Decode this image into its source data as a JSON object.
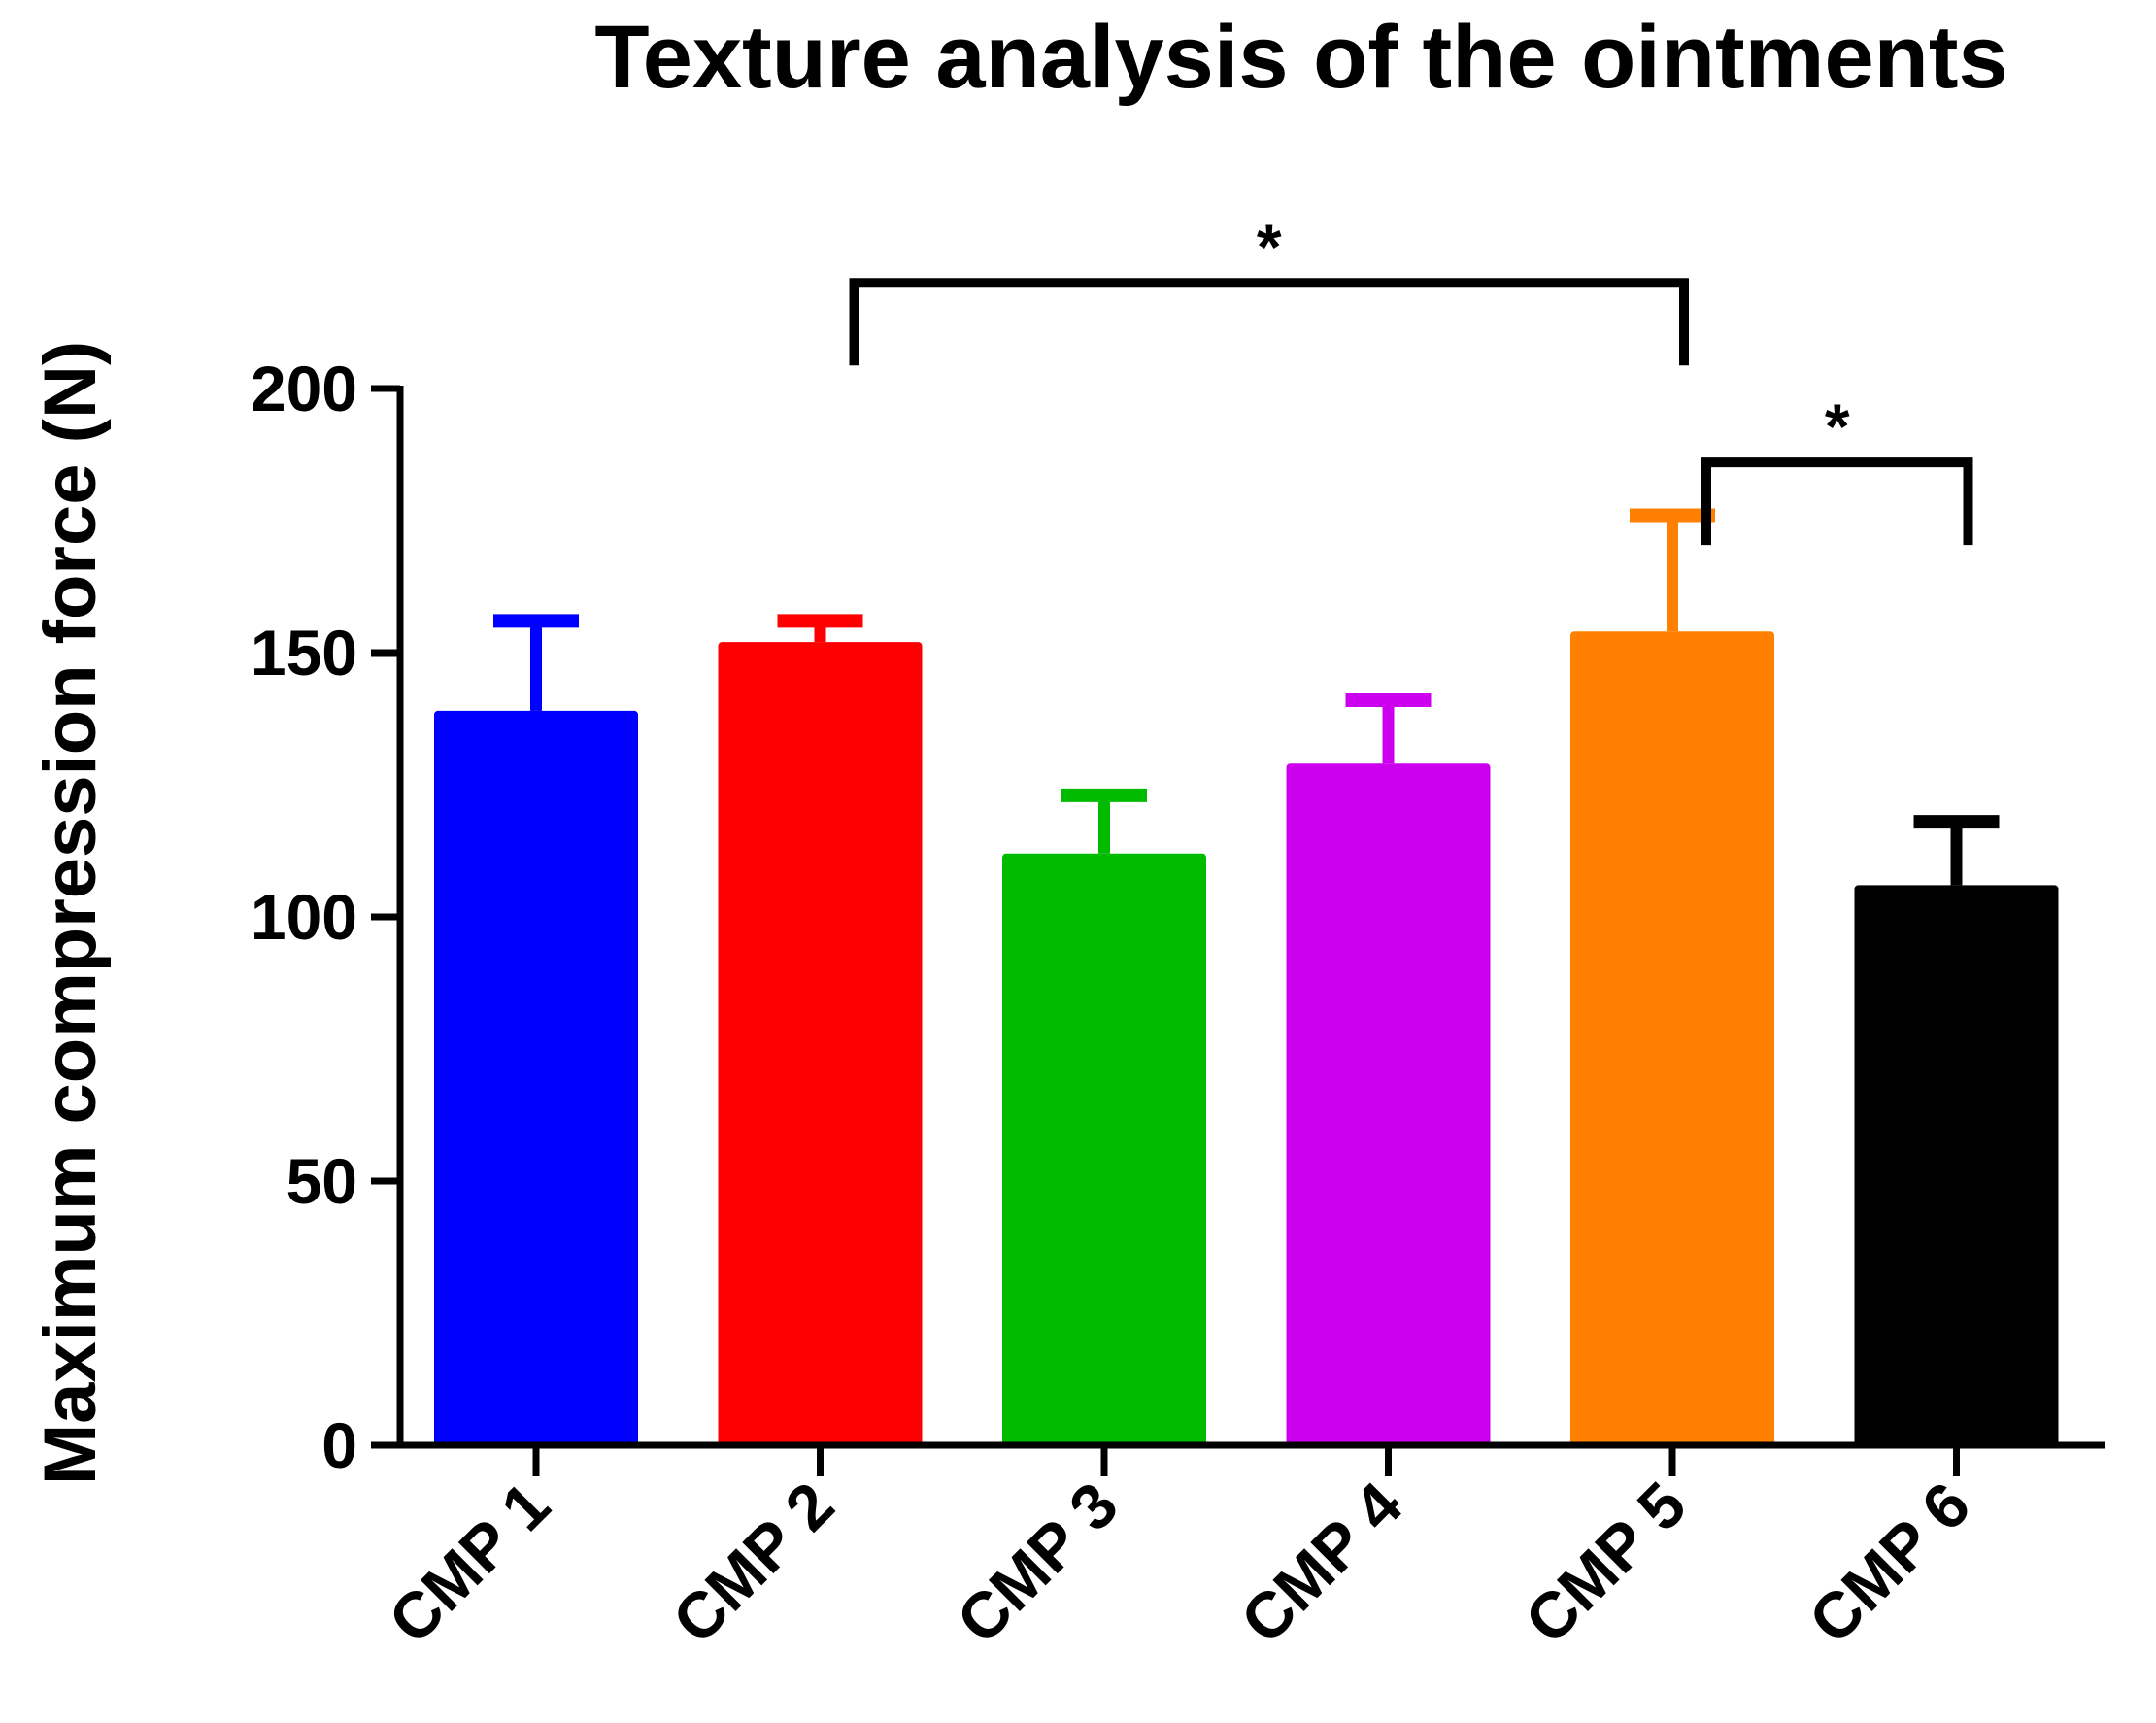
{
  "chart_data": {
    "type": "bar",
    "title": "Texture analysis of the ointments",
    "xlabel": "",
    "ylabel": "Maximum compression force (N)",
    "ylim": [
      0,
      200
    ],
    "yticks": [
      0,
      50,
      100,
      150,
      200
    ],
    "ytick_labels": [
      "0",
      "50",
      "100",
      "150",
      "200"
    ],
    "categories": [
      "CMP 1",
      "CMP 2",
      "CMP 3",
      "CMP 4",
      "CMP 5",
      "CMP 6"
    ],
    "values": [
      139,
      152,
      112,
      129,
      154,
      106
    ],
    "errors": [
      17,
      4,
      11,
      12,
      22,
      12
    ],
    "colors": [
      "#0000ff",
      "#ff0000",
      "#00bb00",
      "#cc00ee",
      "#ff8000",
      "#000000"
    ],
    "grid": false,
    "significance": [
      {
        "from": 1,
        "to": 4,
        "label": "*",
        "level": 220
      },
      {
        "from": 4,
        "to": 5,
        "label": "*",
        "level": 186
      }
    ]
  }
}
